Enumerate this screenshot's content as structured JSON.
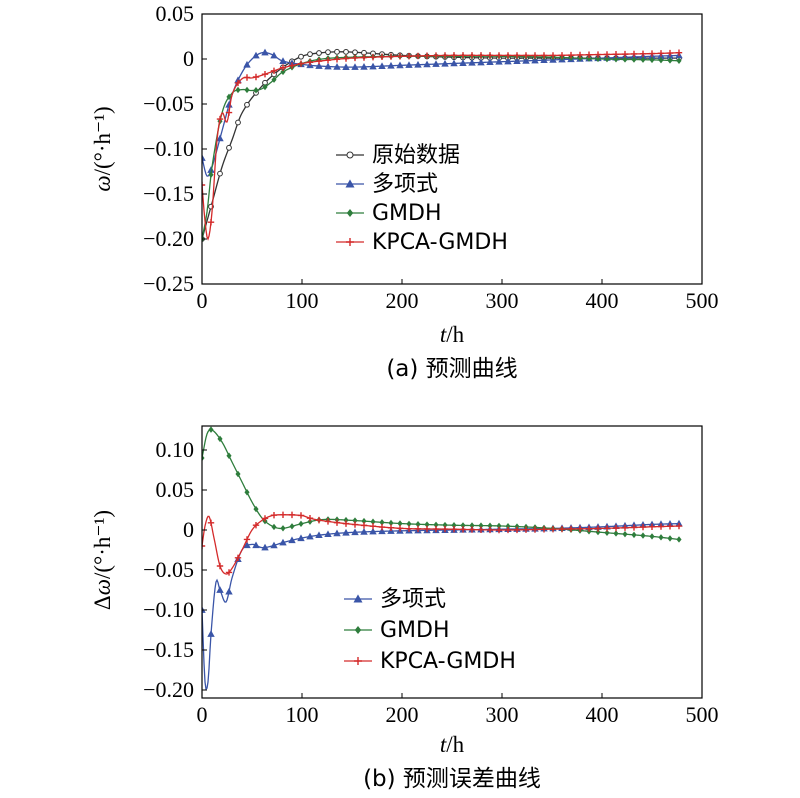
{
  "chart_data": [
    {
      "id": "a",
      "type": "line",
      "caption": "(a) 预测曲线",
      "xlabel_italic": "t",
      "xlabel_unit": "/h",
      "ylabel_italic": "ω",
      "ylabel_unit": "/(°·h⁻¹)",
      "xlim": [
        0,
        500
      ],
      "ylim": [
        -0.25,
        0.05
      ],
      "xticks": [
        0,
        100,
        200,
        300,
        400,
        500
      ],
      "yticks": [
        0.05,
        0,
        -0.05,
        -0.1,
        -0.15,
        -0.2,
        -0.25
      ],
      "ytick_labels": [
        "0.05",
        "0",
        "−0.05",
        "−0.10",
        "−0.15",
        "−0.20",
        "−0.25"
      ],
      "grid": false,
      "legend_position": "center-right",
      "series": [
        {
          "name": "原始数据",
          "color": "#333333",
          "marker": "circle",
          "x": [
            0,
            10,
            20,
            30,
            40,
            60,
            80,
            100,
            120,
            140,
            160,
            200,
            250,
            300,
            350,
            400,
            450,
            478
          ],
          "y": [
            -0.2,
            -0.16,
            -0.12,
            -0.09,
            -0.06,
            -0.03,
            -0.01,
            0.003,
            0.007,
            0.008,
            0.007,
            0.004,
            0.002,
            0.001,
            0.001,
            0.001,
            0.001,
            0.001
          ]
        },
        {
          "name": "多项式",
          "color": "#3a55a8",
          "marker": "triangle",
          "x": [
            0,
            5,
            10,
            20,
            30,
            40,
            50,
            60,
            70,
            80,
            100,
            120,
            150,
            200,
            250,
            300,
            350,
            400,
            450,
            478
          ],
          "y": [
            -0.11,
            -0.13,
            -0.12,
            -0.08,
            -0.04,
            -0.015,
            0.0,
            0.007,
            0.005,
            -0.002,
            -0.006,
            -0.008,
            -0.009,
            -0.007,
            -0.005,
            -0.003,
            -0.001,
            0.001,
            0.003,
            0.004
          ]
        },
        {
          "name": "GMDH",
          "color": "#2e7d3c",
          "marker": "diamond",
          "x": [
            0,
            5,
            10,
            20,
            30,
            40,
            50,
            60,
            70,
            80,
            100,
            120,
            150,
            200,
            250,
            300,
            350,
            400,
            450,
            478
          ],
          "y": [
            -0.2,
            -0.17,
            -0.12,
            -0.06,
            -0.038,
            -0.034,
            -0.035,
            -0.033,
            -0.025,
            -0.015,
            -0.005,
            0.0,
            0.002,
            0.003,
            0.003,
            0.003,
            0.002,
            0.0,
            -0.001,
            -0.002
          ]
        },
        {
          "name": "KPCA-GMDH",
          "color": "#d42a2a",
          "marker": "plus",
          "x": [
            0,
            3,
            6,
            10,
            15,
            20,
            25,
            30,
            40,
            50,
            60,
            70,
            80,
            100,
            120,
            150,
            200,
            250,
            300,
            350,
            400,
            450,
            478
          ],
          "y": [
            -0.14,
            -0.18,
            -0.2,
            -0.17,
            -0.09,
            -0.06,
            -0.07,
            -0.04,
            -0.022,
            -0.021,
            -0.018,
            -0.014,
            -0.01,
            -0.005,
            -0.002,
            0.001,
            0.003,
            0.004,
            0.004,
            0.004,
            0.005,
            0.006,
            0.007
          ]
        }
      ]
    },
    {
      "id": "b",
      "type": "line",
      "caption": "(b) 预测误差曲线",
      "xlabel_italic": "t",
      "xlabel_unit": "/h",
      "ylabel_prefix": "Δ",
      "ylabel_italic": "ω",
      "ylabel_unit": "/(°·h⁻¹)",
      "xlim": [
        0,
        500
      ],
      "ylim": [
        -0.21,
        0.13
      ],
      "xticks": [
        0,
        100,
        200,
        300,
        400,
        500
      ],
      "yticks": [
        0.1,
        0.05,
        0,
        -0.05,
        -0.1,
        -0.15,
        -0.2
      ],
      "ytick_labels": [
        "0.10",
        "0.05",
        "0",
        "−0.05",
        "−0.10",
        "−0.15",
        "−0.20"
      ],
      "grid": false,
      "legend_position": "bottom-center",
      "series": [
        {
          "name": "多项式",
          "color": "#3a55a8",
          "marker": "triangle",
          "x": [
            0,
            3,
            6,
            9,
            14,
            18,
            24,
            30,
            40,
            50,
            60,
            70,
            80,
            100,
            120,
            150,
            200,
            250,
            300,
            350,
            400,
            450,
            478
          ],
          "y": [
            -0.1,
            -0.19,
            -0.19,
            -0.13,
            -0.065,
            -0.075,
            -0.09,
            -0.06,
            -0.025,
            -0.018,
            -0.022,
            -0.02,
            -0.016,
            -0.01,
            -0.006,
            -0.003,
            -0.001,
            0.0,
            0.001,
            0.002,
            0.004,
            0.007,
            0.008
          ]
        },
        {
          "name": "GMDH",
          "color": "#2e7d3c",
          "marker": "diamond",
          "x": [
            0,
            5,
            10,
            20,
            30,
            40,
            50,
            60,
            70,
            80,
            100,
            120,
            150,
            200,
            250,
            300,
            350,
            400,
            450,
            478
          ],
          "y": [
            0.09,
            0.12,
            0.125,
            0.11,
            0.085,
            0.06,
            0.035,
            0.015,
            0.005,
            0.002,
            0.008,
            0.013,
            0.012,
            0.008,
            0.006,
            0.005,
            0.002,
            -0.003,
            -0.008,
            -0.012
          ]
        },
        {
          "name": "KPCA-GMDH",
          "color": "#d42a2a",
          "marker": "plus",
          "x": [
            0,
            3,
            7,
            12,
            18,
            24,
            30,
            40,
            50,
            60,
            70,
            80,
            100,
            110,
            130,
            160,
            200,
            250,
            300,
            350,
            400,
            450,
            478
          ],
          "y": [
            -0.02,
            0.005,
            0.017,
            -0.01,
            -0.045,
            -0.055,
            -0.048,
            -0.025,
            0.0,
            0.012,
            0.018,
            0.019,
            0.018,
            0.014,
            0.01,
            0.006,
            0.002,
            0.001,
            0.0,
            0.001,
            0.002,
            0.004,
            0.005
          ]
        }
      ]
    }
  ]
}
